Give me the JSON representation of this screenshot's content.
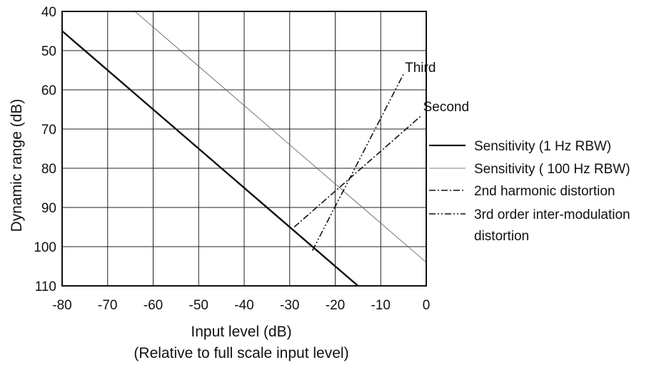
{
  "chart_data": {
    "type": "line",
    "xlabel": "Input level (dB)",
    "xlabel_sub": "(Relative to full scale input level)",
    "ylabel": "Dynamic range (dB)",
    "xlim": [
      -80,
      0
    ],
    "ylim": [
      110,
      40
    ],
    "y_inverted": true,
    "grid": true,
    "x_ticks": [
      -80,
      -70,
      -60,
      -50,
      -40,
      -30,
      -20,
      -10,
      0
    ],
    "x_tick_labels": [
      "-80",
      "-70",
      "-60",
      "-50",
      "-40",
      "-30",
      "-20",
      "-10",
      "0"
    ],
    "y_ticks": [
      40,
      50,
      60,
      70,
      80,
      90,
      100,
      110
    ],
    "y_tick_labels": [
      "40",
      "50",
      "60",
      "70",
      "80",
      "90",
      "100",
      "110"
    ],
    "legend_position": "right",
    "series": [
      {
        "name": "Sensitivity (1 Hz RBW)",
        "style": "solid-thick",
        "x": [
          -80,
          -15
        ],
        "y": [
          45,
          110
        ]
      },
      {
        "name": "Sensitivity ( 100 Hz RBW)",
        "style": "solid-thin",
        "x": [
          -64,
          0
        ],
        "y": [
          40,
          104
        ]
      },
      {
        "name": "2nd harmonic distortion",
        "style": "dash-dot",
        "x": [
          -29,
          -1
        ],
        "y": [
          95,
          66.5
        ]
      },
      {
        "name": "3rd order inter-modulation\ndistortion",
        "style": "dash-dot-dot",
        "x": [
          -25,
          -5
        ],
        "y": [
          101,
          56
        ]
      }
    ],
    "legend_lines": [
      "Sensitivity (1 Hz RBW)",
      "Sensitivity ( 100 Hz RBW)",
      "2nd harmonic distortion",
      "3rd order inter-modulation",
      "distortion"
    ],
    "annotations": [
      {
        "text": "Third",
        "x": -5,
        "y": 56
      },
      {
        "text": "Second",
        "x": -1,
        "y": 66
      }
    ]
  }
}
